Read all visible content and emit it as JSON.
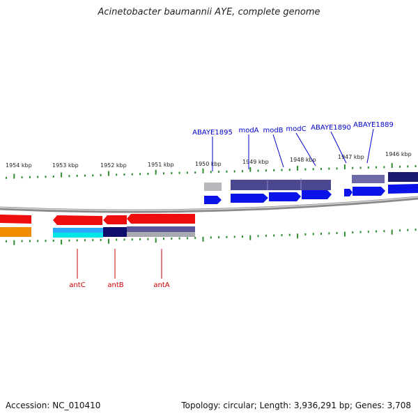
{
  "title": "Acinetobacter baumannii AYE, complete genome",
  "scale": {
    "ticks": [
      "1954 kbp",
      "1953 kbp",
      "1952 kbp",
      "1951 kbp",
      "1950 kbp",
      "1949 kbp",
      "1948 kbp",
      "1947 kbp",
      "1946 kbp"
    ]
  },
  "genes_forward": [
    "ABAYE1895",
    "modA",
    "modB",
    "modC",
    "ABAYE1890",
    "ABAYE1889"
  ],
  "genes_reverse": [
    "antC",
    "antB",
    "antA"
  ],
  "footer": {
    "accession": "Accession: NC_010410",
    "stats": "Topology: circular; Length: 3,936,291 bp; Genes: 3,708"
  },
  "colors": {
    "forward_gene": "#0a14e8",
    "reverse_gene": "#ee0d0d",
    "forward_label": "#0000cc",
    "reverse_label": "#cc0000",
    "tick": "#2e8b2e"
  }
}
